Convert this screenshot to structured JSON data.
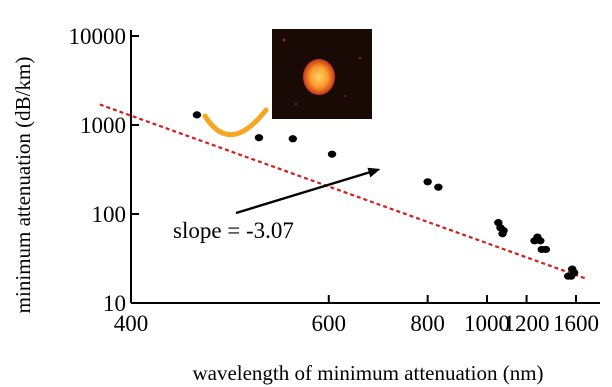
{
  "chart_data": {
    "type": "scatter",
    "title": "",
    "xlabel": "wavelength of minimum attenuation (nm)",
    "ylabel": "minimum attenuation (dB/km)",
    "x_scale": "reciprocal",
    "y_scale": "log",
    "xlim": [
      400,
      1650
    ],
    "ylim": [
      10,
      10000
    ],
    "x_ticks": [
      400,
      600,
      800,
      1000,
      1200,
      1600
    ],
    "x_tick_labels": [
      "400",
      "600",
      "800",
      "1000",
      "1200",
      "1600"
    ],
    "y_ticks": [
      10,
      100,
      1000,
      10000
    ],
    "y_tick_labels": [
      "10",
      "100",
      "1000",
      "10000"
    ],
    "grid": false,
    "points": [
      {
        "x": 450,
        "y": 1300
      },
      {
        "x": 510,
        "y": 720
      },
      {
        "x": 550,
        "y": 700
      },
      {
        "x": 605,
        "y": 470
      },
      {
        "x": 800,
        "y": 230
      },
      {
        "x": 830,
        "y": 200
      },
      {
        "x": 1050,
        "y": 80
      },
      {
        "x": 1060,
        "y": 70
      },
      {
        "x": 1070,
        "y": 60
      },
      {
        "x": 1075,
        "y": 65
      },
      {
        "x": 1250,
        "y": 50
      },
      {
        "x": 1270,
        "y": 55
      },
      {
        "x": 1290,
        "y": 50
      },
      {
        "x": 1300,
        "y": 40
      },
      {
        "x": 1330,
        "y": 40
      },
      {
        "x": 1520,
        "y": 20
      },
      {
        "x": 1550,
        "y": 20
      },
      {
        "x": 1560,
        "y": 24
      },
      {
        "x": 1580,
        "y": 22
      }
    ],
    "fit_line": {
      "x": [
        380,
        1700
      ],
      "y": [
        1700,
        19
      ],
      "color": "#d21f1f",
      "style": "dashed"
    },
    "annotation": {
      "text": "slope = -3.07",
      "arrow_target": {
        "x": 690,
        "y": 320
      }
    },
    "inset": {
      "description": "fiber end-face image",
      "bright_color": "#ffb43a",
      "background_color": "#1a0a06"
    },
    "colors": {
      "points": "#000000",
      "axes": "#000000",
      "fit_line": "#d21f1f",
      "mode_arc": "#f5a623"
    }
  }
}
